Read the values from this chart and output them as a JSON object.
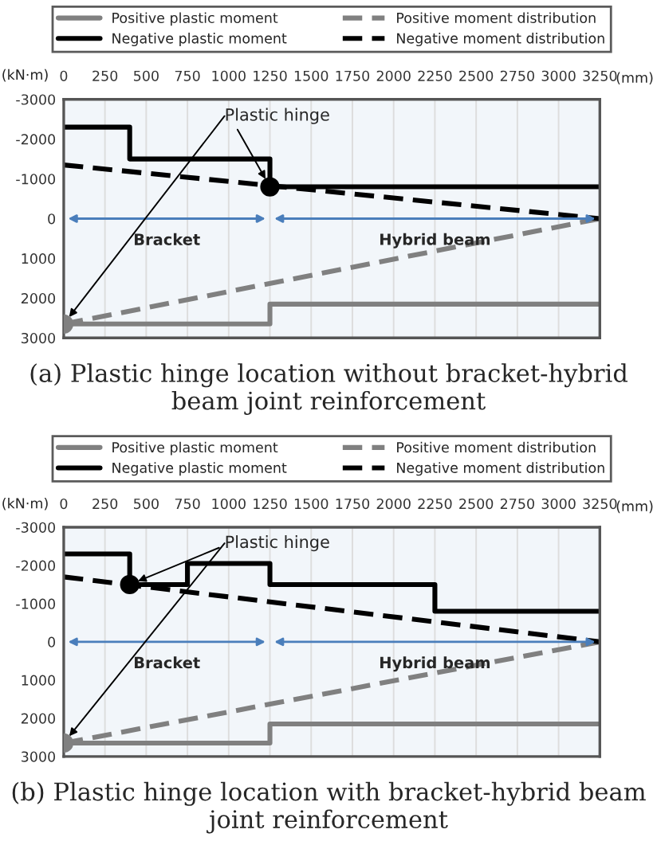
{
  "chart_data": [
    {
      "type": "line",
      "title": "(a) Plastic hinge location without bracket-hybrid beam joint reinforcement",
      "xlabel": "(mm)",
      "ylabel": "(kN·m)",
      "xlim": [
        0,
        3250
      ],
      "xticks": [
        0,
        250,
        500,
        750,
        1000,
        1250,
        1500,
        1750,
        2000,
        2250,
        2500,
        2750,
        3000,
        3250
      ],
      "ylim": [
        3000,
        -3000
      ],
      "yticks": [
        -3000,
        -2000,
        -1000,
        0,
        1000,
        2000,
        3000
      ],
      "grid": "x",
      "legend": "top",
      "series": [
        {
          "name": "Positive plastic moment",
          "color": "#808080",
          "x": [
            0,
            1250,
            1250,
            3250
          ],
          "values": [
            2650,
            2650,
            2150,
            2150
          ]
        },
        {
          "name": "Negative plastic moment",
          "color": "#000000",
          "x": [
            0,
            400,
            400,
            1250,
            1250,
            3250
          ],
          "values": [
            -2300,
            -2300,
            -1500,
            -1500,
            -800,
            -800
          ]
        },
        {
          "name": "Positive moment distribution",
          "color": "#808080",
          "line_style": "dashed",
          "x": [
            0,
            3250
          ],
          "values": [
            2650,
            0
          ]
        },
        {
          "name": "Negative moment distribution",
          "color": "#000000",
          "line_style": "dashed",
          "x": [
            0,
            3250
          ],
          "values": [
            -1350,
            0
          ]
        },
        {
          "type": "scatter",
          "marker": "circle",
          "colors": [
            "#000000",
            "#808080"
          ],
          "x": [
            1250,
            0
          ],
          "values": [
            -800,
            2650
          ]
        }
      ],
      "bands": [
        {
          "axis": "x",
          "from": 0,
          "to": 1250,
          "label": "Bracket",
          "color": "#4a7ebb"
        },
        {
          "axis": "x",
          "from": 1250,
          "to": 3250,
          "label": "Hybrid beam",
          "color": "#4a7ebb"
        }
      ],
      "annotations": [
        {
          "text": "Plastic hinge",
          "x": 1250,
          "y": -800
        }
      ]
    },
    {
      "type": "line",
      "title": "(b) Plastic hinge location with bracket-hybrid beam joint reinforcement",
      "xlabel": "(mm)",
      "ylabel": "(kN·m)",
      "xlim": [
        0,
        3250
      ],
      "xticks": [
        0,
        250,
        500,
        750,
        1000,
        1250,
        1500,
        1750,
        2000,
        2250,
        2500,
        2750,
        3000,
        3250
      ],
      "ylim": [
        3000,
        -3000
      ],
      "yticks": [
        -3000,
        -2000,
        -1000,
        0,
        1000,
        2000,
        3000
      ],
      "grid": "x",
      "legend": "top",
      "series": [
        {
          "name": "Positive plastic moment",
          "color": "#808080",
          "x": [
            0,
            1250,
            1250,
            3250
          ],
          "values": [
            2650,
            2650,
            2150,
            2150
          ]
        },
        {
          "name": "Negative plastic moment",
          "color": "#000000",
          "x": [
            0,
            400,
            400,
            750,
            750,
            1250,
            1250,
            2250,
            2250,
            3250
          ],
          "values": [
            -2300,
            -2300,
            -1500,
            -1500,
            -2050,
            -2050,
            -1500,
            -1500,
            -800,
            -800
          ]
        },
        {
          "name": "Positive moment distribution",
          "color": "#808080",
          "line_style": "dashed",
          "x": [
            0,
            3250
          ],
          "values": [
            2650,
            0
          ]
        },
        {
          "name": "Negative moment distribution",
          "color": "#000000",
          "line_style": "dashed",
          "x": [
            0,
            3250
          ],
          "values": [
            -1700,
            0
          ]
        },
        {
          "type": "scatter",
          "marker": "circle",
          "colors": [
            "#000000",
            "#808080"
          ],
          "x": [
            400,
            0
          ],
          "values": [
            -1500,
            2650
          ]
        }
      ],
      "bands": [
        {
          "axis": "x",
          "from": 0,
          "to": 1250,
          "label": "Bracket",
          "color": "#4a7ebb"
        },
        {
          "axis": "x",
          "from": 1250,
          "to": 3250,
          "label": "Hybrid beam",
          "color": "#4a7ebb"
        }
      ],
      "annotations": [
        {
          "text": "Plastic hinge",
          "x": 400,
          "y": -1500
        }
      ]
    }
  ]
}
